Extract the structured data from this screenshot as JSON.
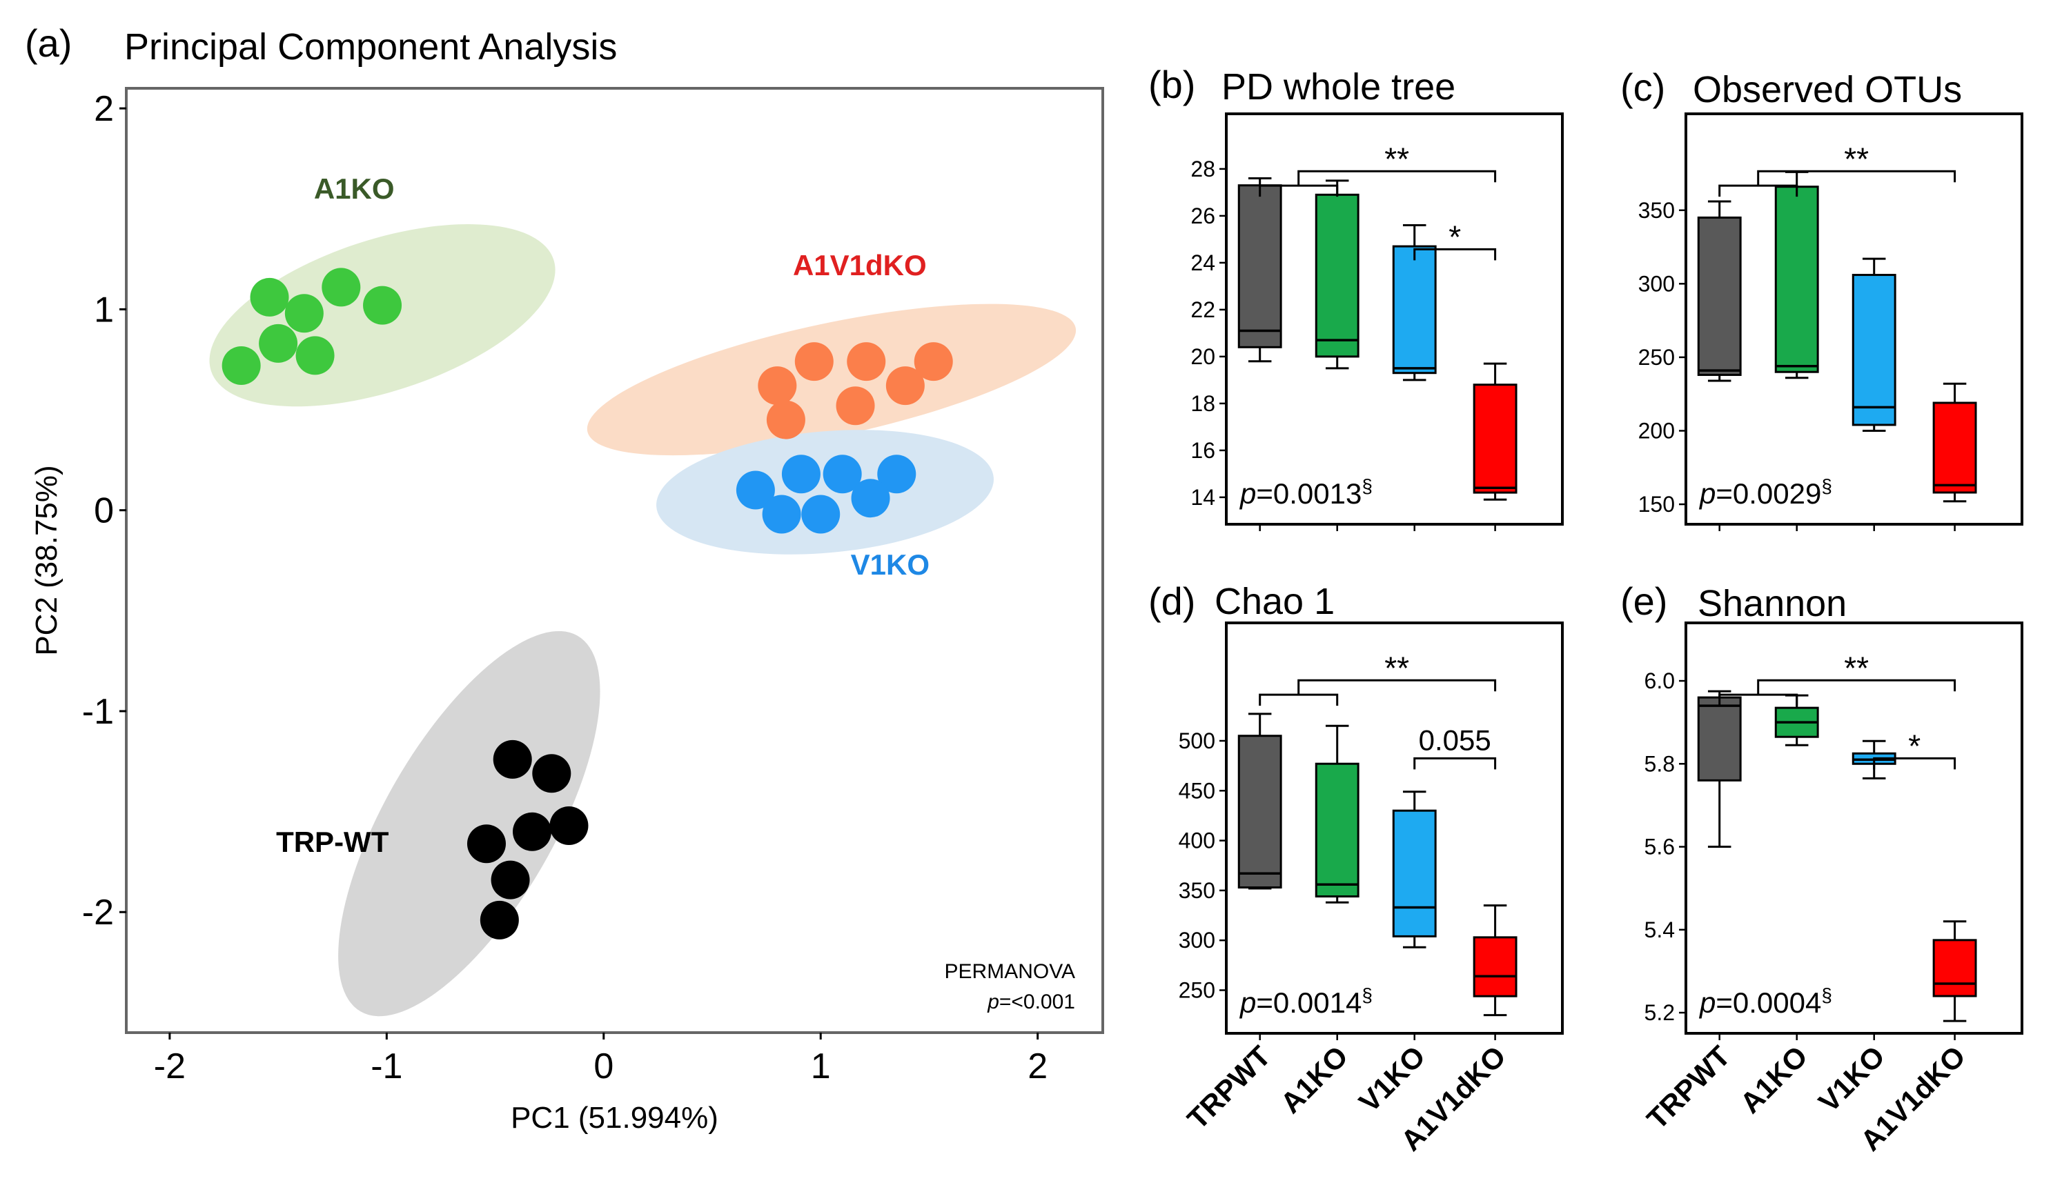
{
  "colors": {
    "TRP-WT": "#000000",
    "A1KO": "#3ec83e",
    "A1V1dKO": "#fb7f4b",
    "V1KO": "#2196f3",
    "A1KO_label": "#3a5a28",
    "A1V1dKO_label": "#e02020",
    "V1KO_label": "#1e88e5",
    "box_TRPWT": "#595959",
    "box_A1KO": "#19a94b",
    "box_V1KO": "#1eaaf1",
    "box_A1V1dKO": "#ff0000",
    "ellipse_A1KO": "#dfeccf",
    "ellipse_A1V1dKO": "#fbdcc6",
    "ellipse_V1KO": "#d6e6f3",
    "ellipse_TRP-WT": "#d6d6d6"
  },
  "chart_data": [
    {
      "id": "a",
      "type": "scatter",
      "panel_label": "(a)",
      "title": "Principal Component Analysis",
      "xlabel": "PC1 (51.994%)",
      "ylabel": "PC2 (38.75%)",
      "xlim": [
        -2.2,
        2.3
      ],
      "ylim": [
        -2.6,
        2.1
      ],
      "xticks": [
        -2,
        -1,
        0,
        1,
        2
      ],
      "yticks": [
        -2,
        -1,
        0,
        1,
        2
      ],
      "xtick_labels": [
        "-2",
        "-1",
        "0",
        "1",
        "2"
      ],
      "ytick_labels": [
        "-2",
        "-1",
        "0",
        "1",
        "2"
      ],
      "annotation": [
        "PERMANOVA",
        "p=<0.001"
      ],
      "series": [
        {
          "name": "A1KO",
          "label": "A1KO",
          "ellipse": {
            "cx": -1.02,
            "cy": 0.97,
            "rx": 0.83,
            "ry": 0.35,
            "angle": 18
          },
          "label_pos": [
            -1.15,
            1.55
          ],
          "points": [
            [
              -1.54,
              1.06
            ],
            [
              -1.38,
              0.98
            ],
            [
              -1.21,
              1.11
            ],
            [
              -1.02,
              1.02
            ],
            [
              -1.5,
              0.83
            ],
            [
              -1.33,
              0.77
            ],
            [
              -1.67,
              0.72
            ]
          ]
        },
        {
          "name": "A1V1dKO",
          "label": "A1V1dKO",
          "ellipse": {
            "cx": 1.05,
            "cy": 0.65,
            "rx": 1.15,
            "ry": 0.26,
            "angle": 12
          },
          "label_pos": [
            1.18,
            1.17
          ],
          "points": [
            [
              0.97,
              0.74
            ],
            [
              1.21,
              0.74
            ],
            [
              1.52,
              0.74
            ],
            [
              0.8,
              0.62
            ],
            [
              1.39,
              0.62
            ],
            [
              1.16,
              0.52
            ],
            [
              0.84,
              0.45
            ]
          ]
        },
        {
          "name": "V1KO",
          "label": "V1KO",
          "ellipse": {
            "cx": 1.02,
            "cy": 0.09,
            "rx": 0.78,
            "ry": 0.28,
            "angle": 5
          },
          "label_pos": [
            1.32,
            -0.32
          ],
          "points": [
            [
              0.91,
              0.18
            ],
            [
              1.1,
              0.18
            ],
            [
              1.35,
              0.18
            ],
            [
              0.7,
              0.1
            ],
            [
              1.23,
              0.06
            ],
            [
              0.82,
              -0.02
            ],
            [
              1.0,
              -0.02
            ]
          ]
        },
        {
          "name": "TRP-WT",
          "label": "TRP-WT",
          "ellipse": {
            "cx": -0.62,
            "cy": -1.56,
            "rx": 1.0,
            "ry": 0.39,
            "angle": 60
          },
          "label_pos": [
            -1.25,
            -1.7
          ],
          "points": [
            [
              -0.42,
              -1.24
            ],
            [
              -0.24,
              -1.31
            ],
            [
              -0.33,
              -1.6
            ],
            [
              -0.16,
              -1.57
            ],
            [
              -0.54,
              -1.66
            ],
            [
              -0.43,
              -1.84
            ],
            [
              -0.48,
              -2.04
            ]
          ]
        }
      ]
    },
    {
      "id": "b",
      "type": "box",
      "panel_label": "(b)",
      "title": "PD whole tree",
      "categories": [
        "TRPWT",
        "A1KO",
        "V1KO",
        "A1V1dKO"
      ],
      "ylim": [
        13.2,
        30.0
      ],
      "yticks": [
        14,
        16,
        18,
        20,
        22,
        24,
        26,
        28
      ],
      "ytick_labels": [
        "14",
        "16",
        "18",
        "20",
        "22",
        "24",
        "26",
        "28"
      ],
      "boxes": [
        {
          "min": 19.8,
          "q1": 20.4,
          "median": 21.1,
          "q3": 27.3,
          "max": 27.6
        },
        {
          "min": 19.5,
          "q1": 20.0,
          "median": 20.7,
          "q3": 26.9,
          "max": 27.5
        },
        {
          "min": 19.0,
          "q1": 19.3,
          "median": 19.5,
          "q3": 24.7,
          "max": 25.6
        },
        {
          "min": 13.9,
          "q1": 14.2,
          "median": 14.4,
          "q3": 18.8,
          "max": 19.7
        }
      ],
      "p_value": {
        "italic": "p",
        "text": "=0.0013",
        "sup": "§"
      },
      "sig_brackets": [
        {
          "from": 0.5,
          "to": 3,
          "label": "**",
          "level": 0
        },
        {
          "from": 2,
          "to": 3,
          "label": "*",
          "level": 1
        }
      ]
    },
    {
      "id": "c",
      "type": "box",
      "panel_label": "(c)",
      "title": "Observed OTUs",
      "categories": [
        "TRPWT",
        "A1KO",
        "V1KO",
        "A1V1dKO"
      ],
      "ylim": [
        142,
        410
      ],
      "yticks": [
        150,
        200,
        250,
        300,
        350
      ],
      "ytick_labels": [
        "150",
        "200",
        "250",
        "300",
        "350"
      ],
      "boxes": [
        {
          "min": 234,
          "q1": 238,
          "median": 241,
          "q3": 345,
          "max": 356
        },
        {
          "min": 236,
          "q1": 240,
          "median": 244,
          "q3": 366,
          "max": 376
        },
        {
          "min": 200,
          "q1": 204,
          "median": 216,
          "q3": 306,
          "max": 317
        },
        {
          "min": 152,
          "q1": 158,
          "median": 163,
          "q3": 219,
          "max": 232
        }
      ],
      "p_value": {
        "italic": "p",
        "text": "=0.0029",
        "sup": "§"
      },
      "sig_brackets": [
        {
          "from": 0.5,
          "to": 3,
          "label": "**",
          "level": 0
        }
      ]
    },
    {
      "id": "d",
      "type": "box",
      "panel_label": "(d)",
      "title": "Chao 1",
      "categories": [
        "TRPWT",
        "A1KO",
        "V1KO",
        "A1V1dKO"
      ],
      "ylim": [
        215,
        610
      ],
      "yticks": [
        250,
        300,
        350,
        400,
        450,
        500
      ],
      "ytick_labels": [
        "250",
        "300",
        "350",
        "400",
        "450",
        "500"
      ],
      "boxes": [
        {
          "min": 352,
          "q1": 353,
          "median": 367,
          "q3": 505,
          "max": 527
        },
        {
          "min": 338,
          "q1": 344,
          "median": 356,
          "q3": 477,
          "max": 515
        },
        {
          "min": 293,
          "q1": 304,
          "median": 333,
          "q3": 430,
          "max": 449
        },
        {
          "min": 225,
          "q1": 244,
          "median": 264,
          "q3": 303,
          "max": 335
        }
      ],
      "p_value": {
        "italic": "p",
        "text": "=0.0014",
        "sup": "§"
      },
      "sig_brackets": [
        {
          "from": 0.5,
          "to": 3,
          "label": "**",
          "level": 0
        },
        {
          "from": 2,
          "to": 3,
          "label": "0.055",
          "level": 1
        }
      ]
    },
    {
      "id": "e",
      "type": "box",
      "panel_label": "(e)",
      "title": "Shannon",
      "categories": [
        "TRPWT",
        "A1KO",
        "V1KO",
        "A1V1dKO"
      ],
      "ylim": [
        5.17,
        6.12
      ],
      "yticks": [
        5.2,
        5.4,
        5.6,
        5.8,
        6.0
      ],
      "ytick_labels": [
        "5.2",
        "5.4",
        "5.6",
        "5.8",
        "6.0"
      ],
      "boxes": [
        {
          "min": 5.6,
          "q1": 5.76,
          "median": 5.94,
          "q3": 5.96,
          "max": 5.975
        },
        {
          "min": 5.845,
          "q1": 5.865,
          "median": 5.9,
          "q3": 5.935,
          "max": 5.965
        },
        {
          "min": 5.765,
          "q1": 5.8,
          "median": 5.81,
          "q3": 5.825,
          "max": 5.855
        },
        {
          "min": 5.18,
          "q1": 5.24,
          "median": 5.27,
          "q3": 5.375,
          "max": 5.42
        }
      ],
      "p_value": {
        "italic": "p",
        "text": "=0.0004",
        "sup": "§"
      },
      "sig_brackets": [
        {
          "from": 0.5,
          "to": 3,
          "label": "**",
          "level": 0
        },
        {
          "from": 2,
          "to": 3,
          "label": "*",
          "level": 1
        }
      ]
    }
  ]
}
